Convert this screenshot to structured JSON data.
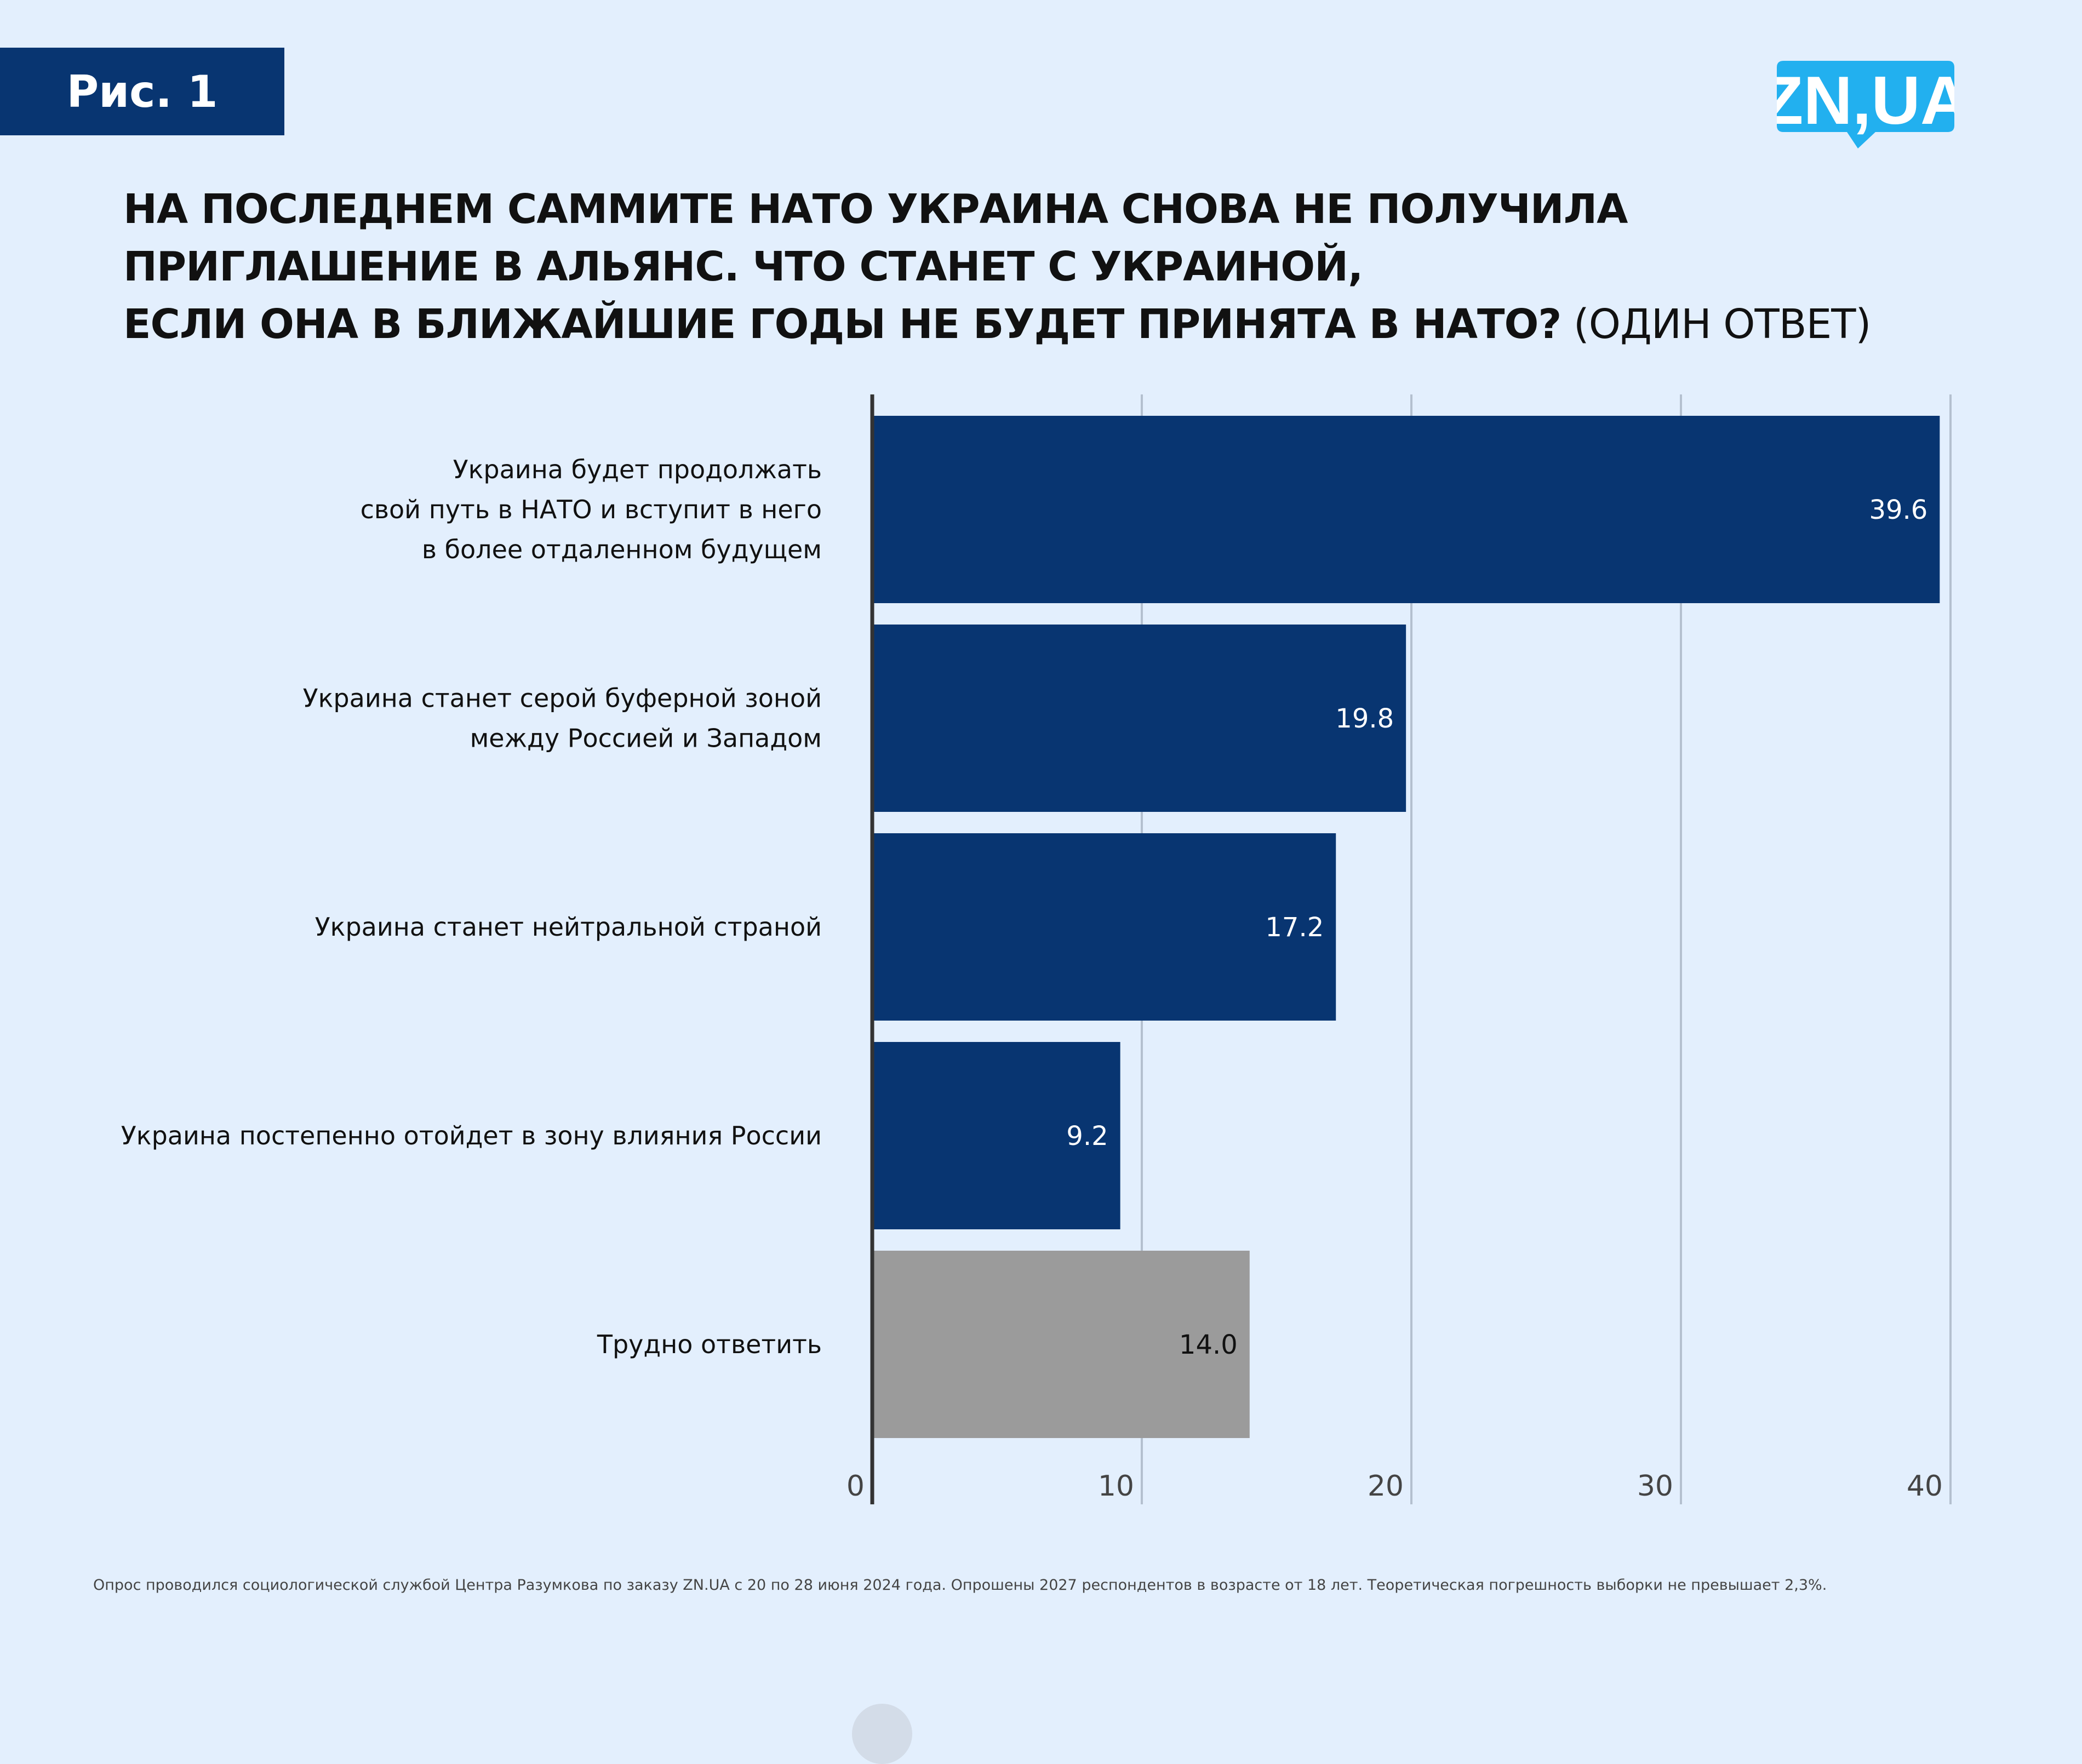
{
  "badge": "Рис. 1",
  "logo": "ZN,UA",
  "colors": {
    "background": "#e3effd",
    "bar": "#083571",
    "bar_other": "#9b9b9b",
    "logo": "#22b0ef",
    "gridline": "#b4c0cf"
  },
  "title": {
    "lines": [
      "НА ПОСЛЕДНЕМ САММИТЕ НАТО УКРАИНА СНОВА НЕ ПОЛУЧИЛА",
      "ПРИГЛАШЕНИЕ В АЛЬЯНС. ЧТО СТАНЕТ С УКРАИНОЙ,",
      "ЕСЛИ ОНА В БЛИЖАЙШИЕ ГОДЫ НЕ БУДЕТ ПРИНЯТА В НАТО?"
    ],
    "suffix": " (ОДИН ОТВЕТ)"
  },
  "chart_data": {
    "type": "bar",
    "orientation": "horizontal",
    "categories": [
      [
        "Украина будет продолжать",
        "свой путь в НАТО и вступит в него",
        "в более отдаленном будущем"
      ],
      [
        "Украина станет серой буферной зоной",
        "между Россией и Западом"
      ],
      [
        "Украина станет нейтральной страной"
      ],
      [
        "Украина постепенно отойдет в зону влияния России"
      ],
      [
        "Трудно ответить"
      ]
    ],
    "values": [
      39.6,
      19.8,
      17.2,
      9.2,
      14.0
    ],
    "value_labels": [
      "39.6",
      "19.8",
      "17.2",
      "9.2",
      "14.0"
    ],
    "bar_colors": [
      "#083571",
      "#083571",
      "#083571",
      "#083571",
      "#9b9b9b"
    ],
    "xlim": [
      0,
      40
    ],
    "xticks": [
      "0",
      "10",
      "20",
      "30",
      "40"
    ],
    "grid": true
  },
  "footer": "Опрос проводился социологической службой Центра Разумкова по заказу ZN.UA с 20 по 28 июня 2024 года. Опрошены 2027 респондентов в возрасте от 18 лет. Теоретическая погрешность выборки не превышает 2,3%."
}
